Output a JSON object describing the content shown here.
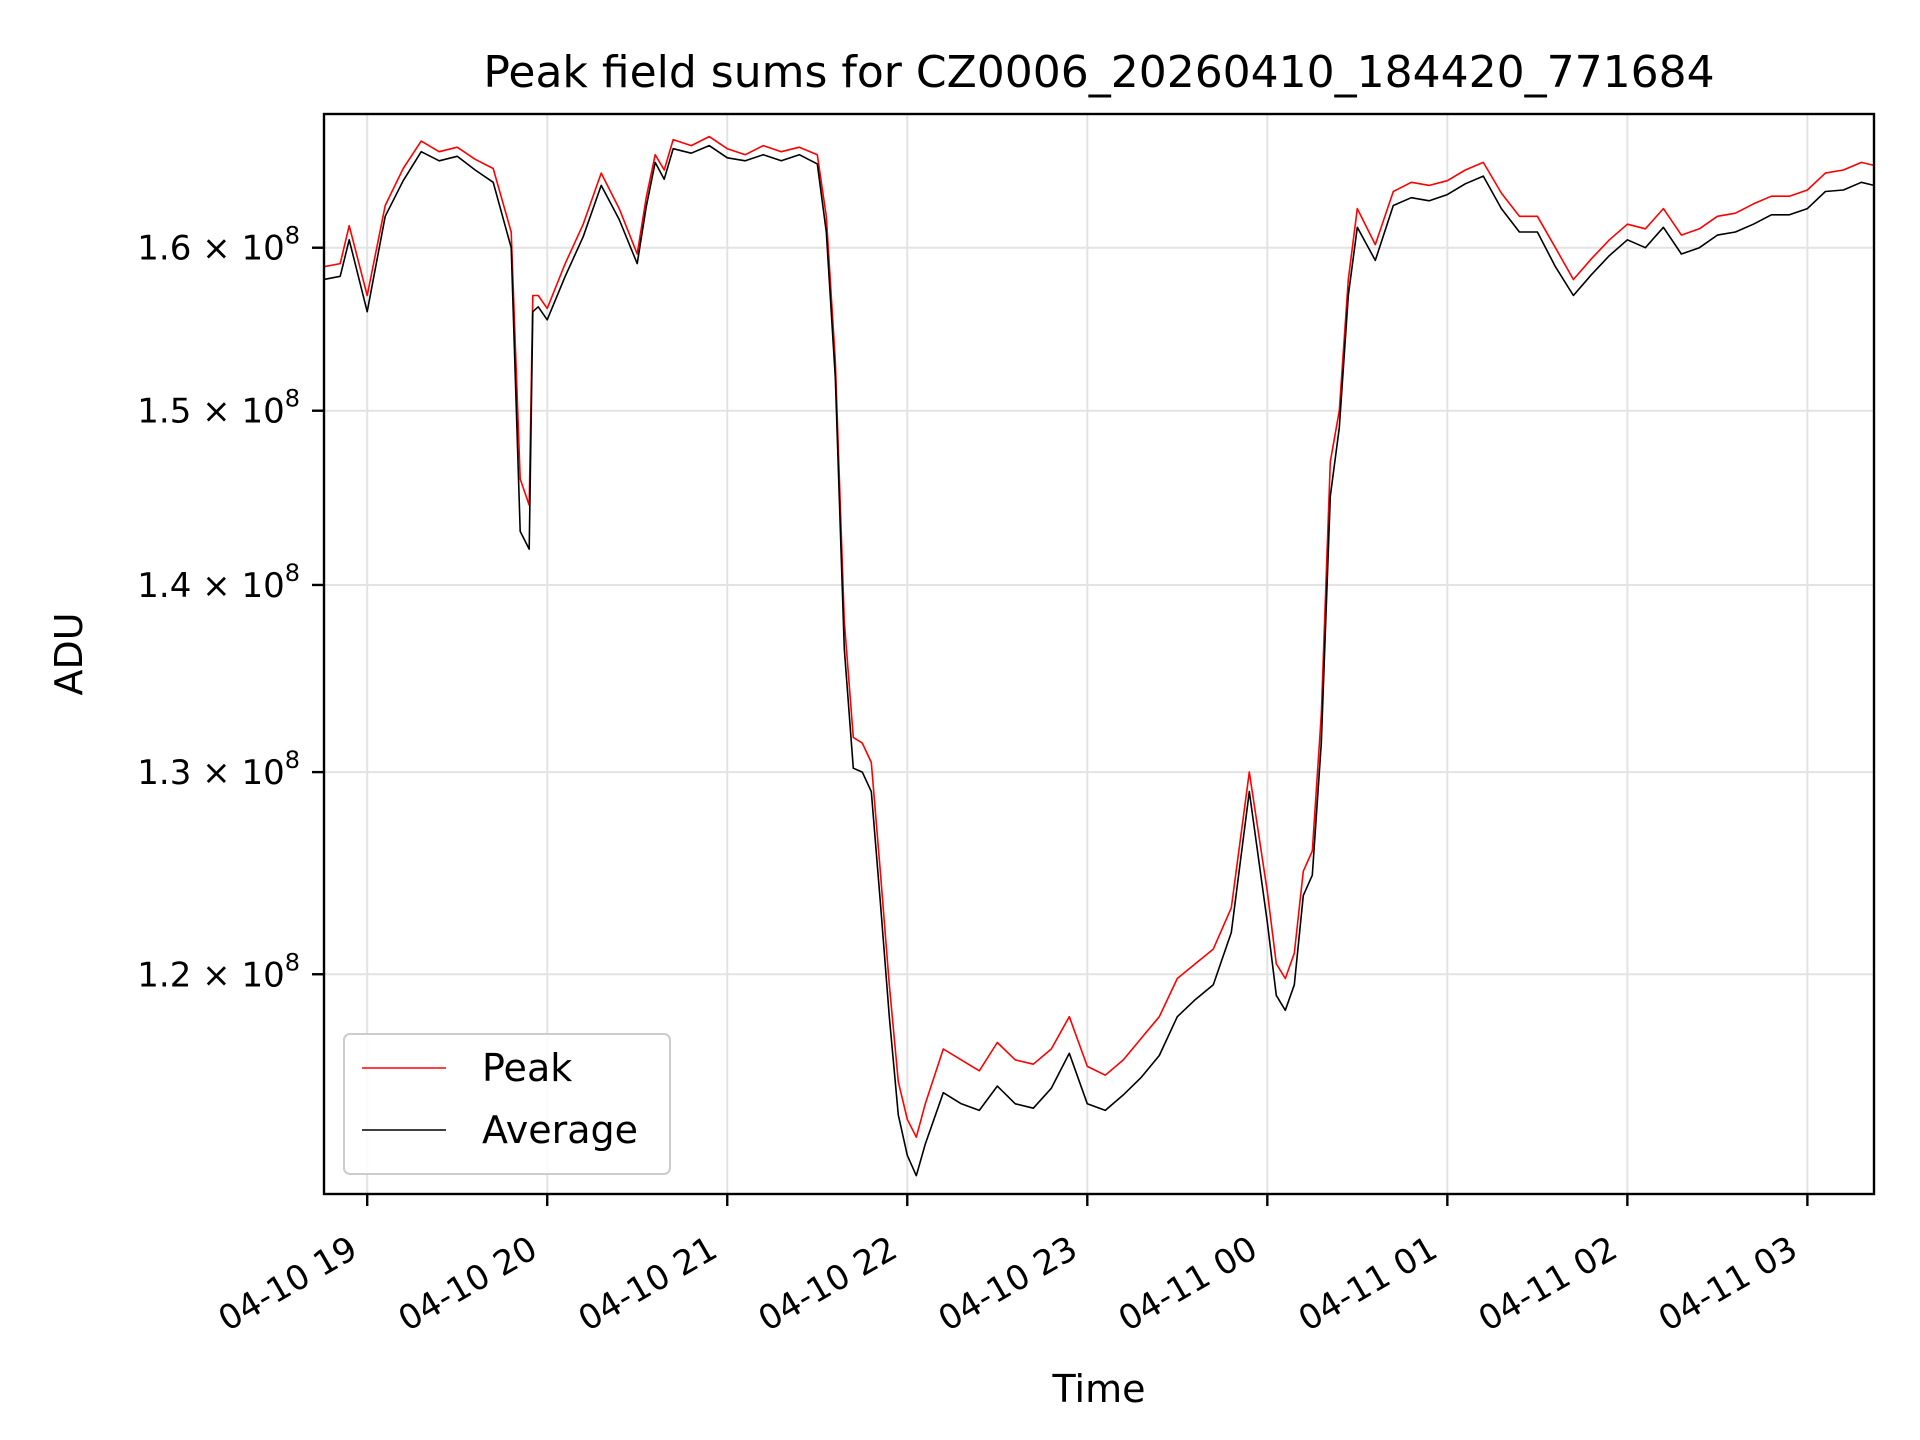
{
  "chart_data": {
    "type": "line",
    "title": "Peak field sums for CZ0006_20260410_184420_771684",
    "xlabel": "Time",
    "ylabel": "ADU",
    "x_unit": "hours since 04-10 00:00",
    "xlim": [
      18.76,
      27.37
    ],
    "ylim": [
      110000000.0,
      168700000.0
    ],
    "yscale": "log",
    "grid": true,
    "legend_position": "lower-left",
    "x_ticks": [
      {
        "value": 19,
        "label": "04-10 19"
      },
      {
        "value": 20,
        "label": "04-10 20"
      },
      {
        "value": 21,
        "label": "04-10 21"
      },
      {
        "value": 22,
        "label": "04-10 22"
      },
      {
        "value": 23,
        "label": "04-10 23"
      },
      {
        "value": 24,
        "label": "04-11 00"
      },
      {
        "value": 25,
        "label": "04-11 01"
      },
      {
        "value": 26,
        "label": "04-11 02"
      },
      {
        "value": 27,
        "label": "04-11 03"
      }
    ],
    "y_ticks": [
      {
        "value": 120000000.0,
        "mantissa": "1.2",
        "exponent": "8"
      },
      {
        "value": 130000000.0,
        "mantissa": "1.3",
        "exponent": "8"
      },
      {
        "value": 140000000.0,
        "mantissa": "1.4",
        "exponent": "8"
      },
      {
        "value": 150000000.0,
        "mantissa": "1.5",
        "exponent": "8"
      },
      {
        "value": 160000000.0,
        "mantissa": "1.6",
        "exponent": "8"
      }
    ],
    "tick_times": "× 10",
    "series": [
      {
        "name": "Peak",
        "color": "#ff0000",
        "x": [
          18.76,
          18.85,
          18.9,
          19.0,
          19.1,
          19.2,
          19.3,
          19.4,
          19.5,
          19.6,
          19.7,
          19.8,
          19.85,
          19.9,
          19.92,
          19.95,
          20.0,
          20.1,
          20.2,
          20.3,
          20.4,
          20.5,
          20.55,
          20.6,
          20.65,
          20.7,
          20.8,
          20.9,
          21.0,
          21.1,
          21.2,
          21.3,
          21.4,
          21.5,
          21.55,
          21.6,
          21.65,
          21.7,
          21.75,
          21.8,
          21.85,
          21.9,
          21.95,
          22.0,
          22.05,
          22.1,
          22.2,
          22.3,
          22.4,
          22.5,
          22.6,
          22.7,
          22.8,
          22.9,
          23.0,
          23.1,
          23.2,
          23.3,
          23.4,
          23.5,
          23.6,
          23.7,
          23.8,
          23.9,
          24.0,
          24.05,
          24.1,
          24.15,
          24.2,
          24.25,
          24.3,
          24.35,
          24.4,
          24.45,
          24.5,
          24.6,
          24.7,
          24.8,
          24.9,
          25.0,
          25.1,
          25.2,
          25.3,
          25.4,
          25.5,
          25.6,
          25.7,
          25.8,
          25.9,
          26.0,
          26.1,
          26.2,
          26.3,
          26.4,
          26.5,
          26.6,
          26.7,
          26.8,
          26.9,
          27.0,
          27.1,
          27.2,
          27.3,
          27.37
        ],
        "y": [
          158800000.0,
          159000000.0,
          161400000.0,
          157000000.0,
          162700000.0,
          165100000.0,
          166900000.0,
          166200000.0,
          166500000.0,
          165700000.0,
          165100000.0,
          161000000.0,
          146000000.0,
          144500000.0,
          157000000.0,
          157000000.0,
          156200000.0,
          159000000.0,
          161500000.0,
          164800000.0,
          162500000.0,
          159600000.0,
          163200000.0,
          166000000.0,
          165000000.0,
          167000000.0,
          166600000.0,
          167200000.0,
          166400000.0,
          166000000.0,
          166600000.0,
          166200000.0,
          166500000.0,
          166000000.0,
          162000000.0,
          153000000.0,
          138000000.0,
          131800000.0,
          131500000.0,
          130500000.0,
          125000000.0,
          119500000.0,
          115000000.0,
          113300000.0,
          112500000.0,
          114000000.0,
          116500000.0,
          116000000.0,
          115500000.0,
          116800000.0,
          116000000.0,
          115800000.0,
          116500000.0,
          118000000.0,
          115700000.0,
          115300000.0,
          116000000.0,
          117000000.0,
          118000000.0,
          119800000.0,
          120500000.0,
          121200000.0,
          123200000.0,
          130000000.0,
          124000000.0,
          120500000.0,
          119800000.0,
          121000000.0,
          125000000.0,
          126000000.0,
          133000000.0,
          147000000.0,
          150000000.0,
          158000000.0,
          162500000.0,
          160200000.0,
          163600000.0,
          164200000.0,
          164000000.0,
          164300000.0,
          165000000.0,
          165500000.0,
          163500000.0,
          162000000.0,
          162000000.0,
          160000000.0,
          158000000.0,
          159300000.0,
          160500000.0,
          161500000.0,
          161200000.0,
          162500000.0,
          160800000.0,
          161200000.0,
          162000000.0,
          162200000.0,
          162800000.0,
          163300000.0,
          163300000.0,
          163700000.0,
          164800000.0,
          165000000.0,
          165500000.0,
          165300000.0
        ]
      },
      {
        "name": "Average",
        "color": "#000000",
        "x": [
          18.76,
          18.85,
          18.9,
          19.0,
          19.1,
          19.2,
          19.3,
          19.4,
          19.5,
          19.6,
          19.7,
          19.8,
          19.85,
          19.9,
          19.92,
          19.95,
          20.0,
          20.1,
          20.2,
          20.3,
          20.4,
          20.5,
          20.55,
          20.6,
          20.65,
          20.7,
          20.8,
          20.9,
          21.0,
          21.1,
          21.2,
          21.3,
          21.4,
          21.5,
          21.55,
          21.6,
          21.65,
          21.7,
          21.75,
          21.8,
          21.85,
          21.9,
          21.95,
          22.0,
          22.05,
          22.1,
          22.2,
          22.3,
          22.4,
          22.5,
          22.6,
          22.7,
          22.8,
          22.9,
          23.0,
          23.1,
          23.2,
          23.3,
          23.4,
          23.5,
          23.6,
          23.7,
          23.8,
          23.9,
          24.0,
          24.05,
          24.1,
          24.15,
          24.2,
          24.25,
          24.3,
          24.35,
          24.4,
          24.45,
          24.5,
          24.6,
          24.7,
          24.8,
          24.9,
          25.0,
          25.1,
          25.2,
          25.3,
          25.4,
          25.5,
          25.6,
          25.7,
          25.8,
          25.9,
          26.0,
          26.1,
          26.2,
          26.3,
          26.4,
          26.5,
          26.6,
          26.7,
          26.8,
          26.9,
          27.0,
          27.1,
          27.2,
          27.3,
          27.37
        ],
        "y": [
          158000000.0,
          158200000.0,
          160500000.0,
          156000000.0,
          162000000.0,
          164300000.0,
          166200000.0,
          165600000.0,
          165900000.0,
          165000000.0,
          164200000.0,
          160000000.0,
          143000000.0,
          142000000.0,
          156000000.0,
          156300000.0,
          155500000.0,
          158200000.0,
          160700000.0,
          164000000.0,
          161800000.0,
          159000000.0,
          162600000.0,
          165500000.0,
          164400000.0,
          166400000.0,
          166100000.0,
          166600000.0,
          165800000.0,
          165600000.0,
          166000000.0,
          165600000.0,
          166000000.0,
          165400000.0,
          161000000.0,
          152000000.0,
          136500000.0,
          130200000.0,
          130000000.0,
          129000000.0,
          123500000.0,
          118000000.0,
          113500000.0,
          111700000.0,
          110800000.0,
          112200000.0,
          114500000.0,
          114000000.0,
          113700000.0,
          114800000.0,
          114000000.0,
          113800000.0,
          114700000.0,
          116300000.0,
          114000000.0,
          113700000.0,
          114400000.0,
          115200000.0,
          116200000.0,
          118000000.0,
          118800000.0,
          119500000.0,
          122000000.0,
          129000000.0,
          122500000.0,
          119000000.0,
          118300000.0,
          119500000.0,
          123800000.0,
          124800000.0,
          131500000.0,
          145000000.0,
          149000000.0,
          157000000.0,
          161300000.0,
          159200000.0,
          162700000.0,
          163200000.0,
          163000000.0,
          163400000.0,
          164100000.0,
          164600000.0,
          162500000.0,
          161000000.0,
          161000000.0,
          158800000.0,
          157000000.0,
          158300000.0,
          159500000.0,
          160500000.0,
          160000000.0,
          161300000.0,
          159600000.0,
          160000000.0,
          160800000.0,
          161000000.0,
          161500000.0,
          162100000.0,
          162100000.0,
          162500000.0,
          163600000.0,
          163700000.0,
          164200000.0,
          164000000.0
        ]
      }
    ]
  }
}
